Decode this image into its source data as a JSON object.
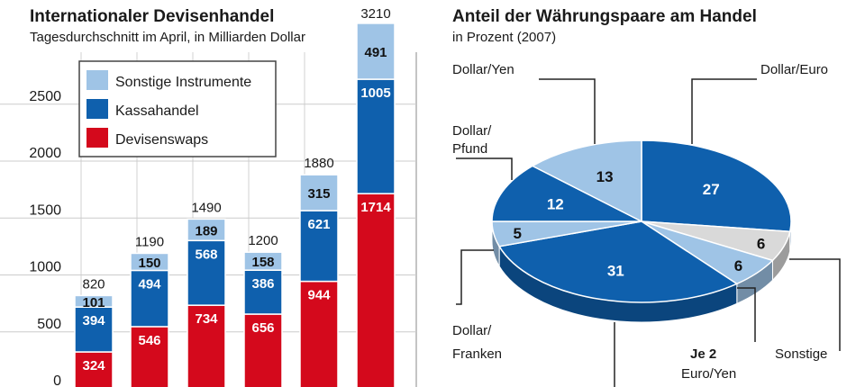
{
  "chart_data": [
    {
      "type": "bar",
      "stacked": true,
      "title": "Internationaler Devisenhandel",
      "subtitle": "Tagesdurchschnitt im April, in Milliarden Dollar",
      "ylim": [
        0,
        3210
      ],
      "yticks": [
        0,
        500,
        1000,
        1500,
        2000,
        2500
      ],
      "grid": true,
      "legend": "top-left",
      "totals": [
        820,
        1190,
        1490,
        1200,
        1880,
        3210
      ],
      "series": [
        {
          "name": "Devisenswaps",
          "color": "#d4091c",
          "values": [
            324,
            546,
            734,
            656,
            944,
            1714
          ]
        },
        {
          "name": "Kassahandel",
          "color": "#0f60ad",
          "values": [
            394,
            494,
            568,
            386,
            621,
            1005
          ]
        },
        {
          "name": "Sonstige Instrumente",
          "color": "#9fc4e6",
          "values": [
            101,
            150,
            189,
            158,
            315,
            491
          ]
        }
      ]
    },
    {
      "type": "pie",
      "title": "Anteil der Währungspaare am Handel",
      "subtitle": "in Prozent (2007)",
      "slices": [
        {
          "label": "Dollar/Euro",
          "value": 27,
          "color": "#0f60ad"
        },
        {
          "label": "Sonstige",
          "value": 6,
          "color": "#d9d9d9"
        },
        {
          "label": "",
          "value": 6,
          "color": "#9fc4e6"
        },
        {
          "label": "",
          "value": 31,
          "color": "#0f60ad"
        },
        {
          "label": "Dollar/Franken",
          "value": 5,
          "color": "#9fc4e6"
        },
        {
          "label": "Dollar/Pfund",
          "value": 12,
          "color": "#0f60ad"
        },
        {
          "label": "Dollar/Yen",
          "value": 13,
          "color": "#9fc4e6"
        }
      ],
      "label_lines": {
        "dollar_yen": "Dollar/Yen",
        "dollar_euro": "Dollar/Euro",
        "dollar_pfund_1": "Dollar/",
        "dollar_pfund_2": "Pfund",
        "dollar_franken_1": "Dollar/",
        "dollar_franken_2": "Franken",
        "sonstige": "Sonstige",
        "je2": "Je 2",
        "euro_yen": "Euro/Yen"
      }
    }
  ]
}
